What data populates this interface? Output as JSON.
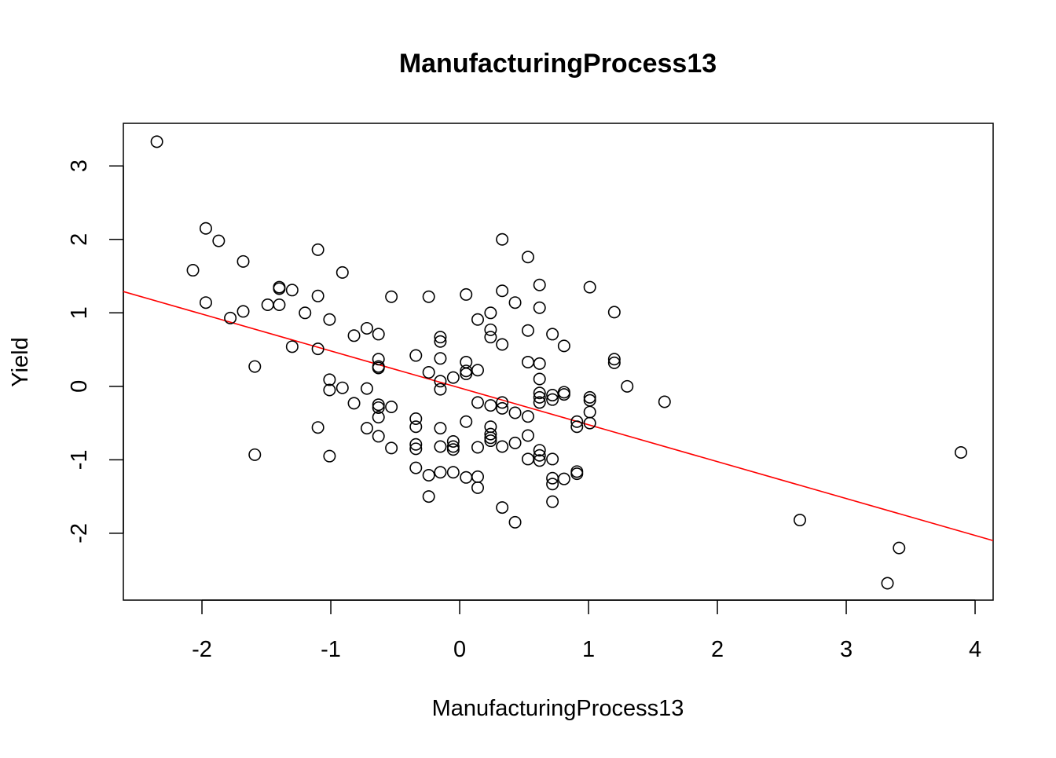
{
  "chart_data": {
    "type": "scatter",
    "title": "ManufacturingProcess13",
    "xlabel": "ManufacturingProcess13",
    "ylabel": "Yield",
    "xlim": [
      -2.61,
      4.14
    ],
    "ylim": [
      -2.91,
      3.58
    ],
    "grid": false,
    "x_ticks": [
      -2,
      -1,
      0,
      1,
      2,
      3,
      4
    ],
    "x_tick_labels": [
      "-2",
      "-1",
      "0",
      "1",
      "2",
      "3",
      "4"
    ],
    "y_ticks": [
      -2,
      -1,
      0,
      1,
      2,
      3
    ],
    "y_tick_labels": [
      "-2",
      "-1",
      "0",
      "1",
      "2",
      "3"
    ],
    "colors": {
      "points": "#000000",
      "fit_line": "#ff0000",
      "frame": "#000000"
    },
    "fit_line": {
      "type": "regression",
      "points": [
        [
          -2.61,
          1.29
        ],
        [
          4.14,
          -2.1
        ]
      ]
    },
    "series": [
      {
        "points": [
          [
            -2.35,
            3.33
          ],
          [
            -1.97,
            2.15
          ],
          [
            -1.87,
            1.98
          ],
          [
            -2.07,
            1.58
          ],
          [
            -1.97,
            1.14
          ],
          [
            -1.68,
            1.7
          ],
          [
            -1.68,
            1.02
          ],
          [
            -1.78,
            0.93
          ],
          [
            -1.49,
            1.11
          ],
          [
            -1.4,
            1.35
          ],
          [
            -1.4,
            1.33
          ],
          [
            -1.4,
            1.11
          ],
          [
            -1.3,
            1.31
          ],
          [
            -1.2,
            1.0
          ],
          [
            -1.3,
            0.54
          ],
          [
            -1.59,
            0.27
          ],
          [
            -1.59,
            -0.93
          ],
          [
            -1.1,
            1.86
          ],
          [
            -1.1,
            1.23
          ],
          [
            -1.1,
            0.51
          ],
          [
            -1.1,
            -0.56
          ],
          [
            -1.01,
            0.91
          ],
          [
            -1.01,
            0.09
          ],
          [
            -1.01,
            -0.05
          ],
          [
            -1.01,
            -0.95
          ],
          [
            -0.91,
            1.55
          ],
          [
            -0.91,
            -0.02
          ],
          [
            -0.82,
            0.69
          ],
          [
            -0.82,
            -0.23
          ],
          [
            -0.72,
            0.79
          ],
          [
            -0.72,
            -0.03
          ],
          [
            -0.72,
            -0.57
          ],
          [
            -0.63,
            0.71
          ],
          [
            -0.63,
            0.37
          ],
          [
            -0.63,
            0.27
          ],
          [
            -0.63,
            0.25
          ],
          [
            -0.63,
            -0.25
          ],
          [
            -0.63,
            -0.29
          ],
          [
            -0.63,
            -0.42
          ],
          [
            -0.63,
            -0.68
          ],
          [
            -0.53,
            1.22
          ],
          [
            -0.53,
            -0.28
          ],
          [
            -0.53,
            -0.84
          ],
          [
            -0.34,
            0.42
          ],
          [
            -0.34,
            -0.44
          ],
          [
            -0.34,
            -0.55
          ],
          [
            -0.34,
            -0.79
          ],
          [
            -0.34,
            -0.85
          ],
          [
            -0.34,
            -1.11
          ],
          [
            -0.24,
            1.22
          ],
          [
            -0.24,
            0.19
          ],
          [
            -0.24,
            -1.21
          ],
          [
            -0.24,
            -1.5
          ],
          [
            -0.15,
            0.67
          ],
          [
            -0.15,
            0.61
          ],
          [
            -0.15,
            0.38
          ],
          [
            -0.15,
            0.07
          ],
          [
            -0.15,
            -0.04
          ],
          [
            -0.15,
            -0.57
          ],
          [
            -0.15,
            -0.82
          ],
          [
            -0.15,
            -1.17
          ],
          [
            -0.05,
            0.12
          ],
          [
            -0.05,
            -0.75
          ],
          [
            -0.05,
            -0.82
          ],
          [
            -0.05,
            -0.86
          ],
          [
            -0.05,
            -1.17
          ],
          [
            0.05,
            1.25
          ],
          [
            0.05,
            0.33
          ],
          [
            0.05,
            0.21
          ],
          [
            0.05,
            0.17
          ],
          [
            0.05,
            -0.48
          ],
          [
            0.05,
            -1.24
          ],
          [
            0.14,
            0.91
          ],
          [
            0.14,
            0.22
          ],
          [
            0.14,
            -0.22
          ],
          [
            0.14,
            -0.83
          ],
          [
            0.14,
            -1.23
          ],
          [
            0.14,
            -1.38
          ],
          [
            0.24,
            1.0
          ],
          [
            0.24,
            0.77
          ],
          [
            0.24,
            0.67
          ],
          [
            0.24,
            -0.26
          ],
          [
            0.24,
            -0.55
          ],
          [
            0.24,
            -0.65
          ],
          [
            0.24,
            -0.7
          ],
          [
            0.24,
            -0.74
          ],
          [
            0.33,
            2.0
          ],
          [
            0.33,
            1.3
          ],
          [
            0.33,
            0.57
          ],
          [
            0.33,
            -0.22
          ],
          [
            0.33,
            -0.3
          ],
          [
            0.33,
            -0.82
          ],
          [
            0.33,
            -1.65
          ],
          [
            0.43,
            1.14
          ],
          [
            0.43,
            -0.36
          ],
          [
            0.43,
            -0.77
          ],
          [
            0.43,
            -1.85
          ],
          [
            0.53,
            1.76
          ],
          [
            0.53,
            0.76
          ],
          [
            0.53,
            0.33
          ],
          [
            0.53,
            -0.41
          ],
          [
            0.53,
            -0.67
          ],
          [
            0.53,
            -0.99
          ],
          [
            0.62,
            1.38
          ],
          [
            0.62,
            1.07
          ],
          [
            0.62,
            0.31
          ],
          [
            0.62,
            0.1
          ],
          [
            0.62,
            -0.09
          ],
          [
            0.62,
            -0.15
          ],
          [
            0.62,
            -0.22
          ],
          [
            0.62,
            -0.87
          ],
          [
            0.62,
            -0.94
          ],
          [
            0.62,
            -1.01
          ],
          [
            0.72,
            0.71
          ],
          [
            0.72,
            -0.12
          ],
          [
            0.72,
            -0.18
          ],
          [
            0.72,
            -0.99
          ],
          [
            0.72,
            -1.25
          ],
          [
            0.72,
            -1.33
          ],
          [
            0.72,
            -1.57
          ],
          [
            0.81,
            0.55
          ],
          [
            0.81,
            -0.08
          ],
          [
            0.81,
            -0.11
          ],
          [
            0.81,
            -1.26
          ],
          [
            0.91,
            -0.48
          ],
          [
            0.91,
            -0.55
          ],
          [
            0.91,
            -1.16
          ],
          [
            0.91,
            -1.19
          ],
          [
            1.01,
            1.35
          ],
          [
            1.01,
            -0.15
          ],
          [
            1.01,
            -0.19
          ],
          [
            1.01,
            -0.35
          ],
          [
            1.01,
            -0.5
          ],
          [
            1.2,
            1.01
          ],
          [
            1.2,
            0.37
          ],
          [
            1.2,
            0.32
          ],
          [
            1.3,
            0.0
          ],
          [
            1.59,
            -0.21
          ],
          [
            2.64,
            -1.82
          ],
          [
            3.32,
            -2.68
          ],
          [
            3.41,
            -2.2
          ],
          [
            3.89,
            -0.9
          ]
        ]
      }
    ]
  }
}
